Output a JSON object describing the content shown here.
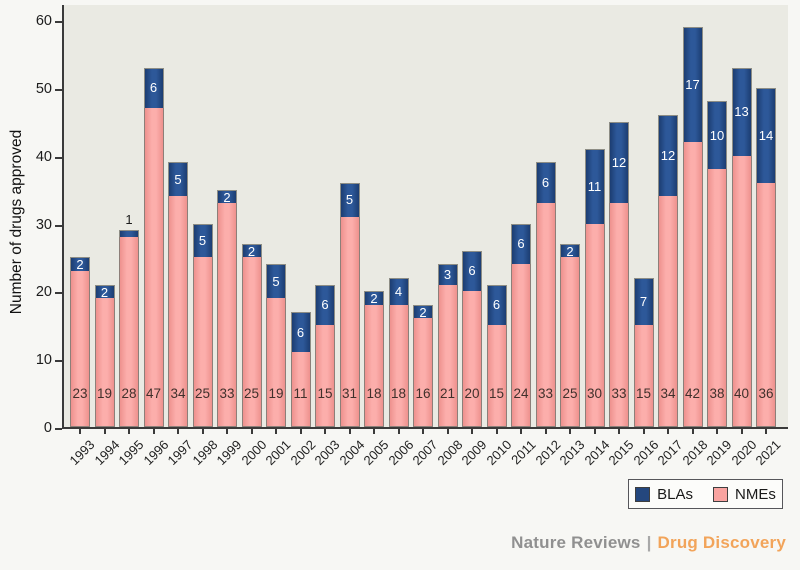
{
  "chart_data": {
    "type": "bar",
    "stacked": true,
    "title": "",
    "xlabel": "",
    "ylabel": "Number of drugs approved",
    "ylim": [
      0,
      60
    ],
    "yticks": [
      0,
      10,
      20,
      30,
      40,
      50,
      60
    ],
    "grid": false,
    "legend_position": "bottom-right",
    "categories": [
      "1993",
      "1994",
      "1995",
      "1996",
      "1997",
      "1998",
      "1999",
      "2000",
      "2001",
      "2002",
      "2003",
      "2004",
      "2005",
      "2006",
      "2007",
      "2008",
      "2009",
      "2010",
      "2011",
      "2012",
      "2013",
      "2014",
      "2015",
      "2016",
      "2017",
      "2018",
      "2019",
      "2020",
      "2021"
    ],
    "series": [
      {
        "name": "NMEs",
        "color": "#f9a3a0",
        "values": [
          23,
          19,
          28,
          47,
          34,
          25,
          33,
          25,
          19,
          11,
          15,
          31,
          18,
          18,
          16,
          21,
          20,
          15,
          24,
          33,
          25,
          30,
          33,
          15,
          34,
          42,
          38,
          40,
          36
        ]
      },
      {
        "name": "BLAs",
        "color": "#24477e",
        "values": [
          2,
          2,
          1,
          6,
          5,
          5,
          2,
          2,
          5,
          6,
          6,
          5,
          2,
          4,
          2,
          3,
          6,
          6,
          6,
          6,
          2,
          11,
          12,
          7,
          12,
          17,
          10,
          13,
          14
        ]
      }
    ]
  },
  "legend": {
    "items": [
      {
        "label": "BLAs",
        "color": "#24477e"
      },
      {
        "label": "NMEs",
        "color": "#f9a3a0"
      }
    ]
  },
  "footer": {
    "journal": "Nature Reviews",
    "separator": "|",
    "title": "Drug Discovery"
  },
  "colors": {
    "nme_fill": "#f9a3a0",
    "bla_fill": "#24477e",
    "plot_background": "#eaeae3",
    "page_background": "#f7f7f4",
    "axis": "#3a3a3a",
    "footer_gray": "#909090",
    "footer_orange": "#f2a45a"
  }
}
